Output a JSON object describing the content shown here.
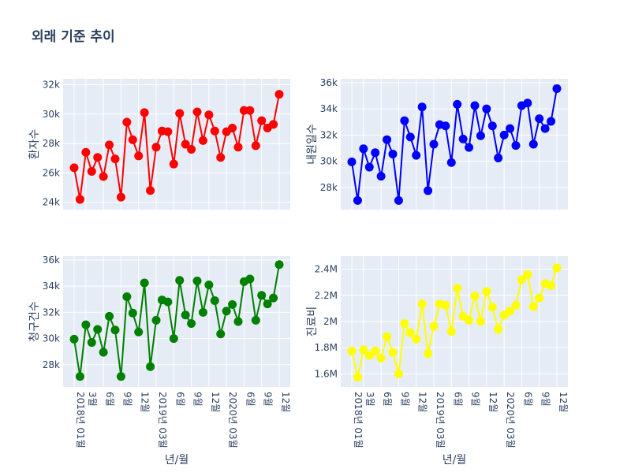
{
  "title": "외래 기준 추이",
  "x_axis_label": "년/월",
  "x_tick_labels": [
    "2018년 01월",
    "3월",
    "6월",
    "9월",
    "12월",
    "2019년 03월",
    "6월",
    "9월",
    "12월",
    "2020년 03월",
    "6월",
    "9월",
    "12월"
  ],
  "chart_data": [
    {
      "type": "line",
      "ylabel": "환자수",
      "color": "#ff0000",
      "y_tick_labels": [
        "24k",
        "26k",
        "28k",
        "30k",
        "32k"
      ],
      "ylim": [
        23500,
        32400
      ],
      "x": [
        "2018-01",
        "2018-02",
        "2018-03",
        "2018-04",
        "2018-05",
        "2018-06",
        "2018-07",
        "2018-08",
        "2018-09",
        "2018-10",
        "2018-11",
        "2018-12",
        "2019-01",
        "2019-02",
        "2019-03",
        "2019-04",
        "2019-05",
        "2019-06",
        "2019-07",
        "2019-08",
        "2019-09",
        "2019-10",
        "2019-11",
        "2019-12",
        "2020-01",
        "2020-02",
        "2020-03",
        "2020-04",
        "2020-05",
        "2020-06",
        "2020-07",
        "2020-08",
        "2020-09",
        "2020-10",
        "2020-11",
        "2020-12"
      ],
      "values": [
        26350,
        24200,
        27400,
        26100,
        27050,
        25750,
        27900,
        26950,
        24350,
        29450,
        28250,
        27150,
        30100,
        24800,
        27750,
        28850,
        28800,
        26600,
        30050,
        27950,
        27600,
        30150,
        28200,
        29950,
        28850,
        27050,
        28800,
        29050,
        27750,
        30250,
        30250,
        27850,
        29550,
        29050,
        29300,
        31350
      ]
    },
    {
      "type": "line",
      "ylabel": "내원일수",
      "color": "#0000ff",
      "y_tick_labels": [
        "28k",
        "30k",
        "32k",
        "34k",
        "36k"
      ],
      "ylim": [
        26300,
        36300
      ],
      "x": [
        "2018-01",
        "2018-02",
        "2018-03",
        "2018-04",
        "2018-05",
        "2018-06",
        "2018-07",
        "2018-08",
        "2018-09",
        "2018-10",
        "2018-11",
        "2018-12",
        "2019-01",
        "2019-02",
        "2019-03",
        "2019-04",
        "2019-05",
        "2019-06",
        "2019-07",
        "2019-08",
        "2019-09",
        "2019-10",
        "2019-11",
        "2019-12",
        "2020-01",
        "2020-02",
        "2020-03",
        "2020-04",
        "2020-05",
        "2020-06",
        "2020-07",
        "2020-08",
        "2020-09",
        "2020-10",
        "2020-11",
        "2020-12"
      ],
      "values": [
        29950,
        27000,
        30950,
        29550,
        30650,
        28850,
        31650,
        30550,
        27000,
        33100,
        31850,
        30450,
        34150,
        27750,
        31300,
        32800,
        32700,
        29900,
        34350,
        31700,
        31050,
        34250,
        31950,
        34000,
        32700,
        30250,
        32000,
        32500,
        31200,
        34250,
        34450,
        31300,
        33250,
        32500,
        33050,
        35550
      ]
    },
    {
      "type": "line",
      "ylabel": "청구건수",
      "color": "#008000",
      "y_tick_labels": [
        "28k",
        "30k",
        "32k",
        "34k",
        "36k"
      ],
      "ylim": [
        26300,
        36300
      ],
      "x": [
        "2018-01",
        "2018-02",
        "2018-03",
        "2018-04",
        "2018-05",
        "2018-06",
        "2018-07",
        "2018-08",
        "2018-09",
        "2018-10",
        "2018-11",
        "2018-12",
        "2019-01",
        "2019-02",
        "2019-03",
        "2019-04",
        "2019-05",
        "2019-06",
        "2019-07",
        "2019-08",
        "2019-09",
        "2019-10",
        "2019-11",
        "2019-12",
        "2020-01",
        "2020-02",
        "2020-03",
        "2020-04",
        "2020-05",
        "2020-06",
        "2020-07",
        "2020-08",
        "2020-09",
        "2020-10",
        "2020-11",
        "2020-12"
      ],
      "values": [
        29950,
        27100,
        31050,
        29700,
        30700,
        28950,
        31700,
        30650,
        27100,
        33200,
        31950,
        30500,
        34250,
        27850,
        31400,
        32950,
        32800,
        30000,
        34450,
        31800,
        31150,
        34400,
        32000,
        34100,
        32900,
        30350,
        32100,
        32600,
        31300,
        34350,
        34550,
        31400,
        33300,
        32650,
        33100,
        35650
      ]
    },
    {
      "type": "line",
      "ylabel": "진료비",
      "color": "#ffff00",
      "y_tick_labels": [
        "1.6M",
        "1.8M",
        "2M",
        "2.2M",
        "2.4M"
      ],
      "ylim": [
        1500000,
        2500000
      ],
      "x": [
        "2018-01",
        "2018-02",
        "2018-03",
        "2018-04",
        "2018-05",
        "2018-06",
        "2018-07",
        "2018-08",
        "2018-09",
        "2018-10",
        "2018-11",
        "2018-12",
        "2019-01",
        "2019-02",
        "2019-03",
        "2019-04",
        "2019-05",
        "2019-06",
        "2019-07",
        "2019-08",
        "2019-09",
        "2019-10",
        "2019-11",
        "2019-12",
        "2020-01",
        "2020-02",
        "2020-03",
        "2020-04",
        "2020-05",
        "2020-06",
        "2020-07",
        "2020-08",
        "2020-09",
        "2020-10",
        "2020-11",
        "2020-12"
      ],
      "values": [
        1775000,
        1575000,
        1785000,
        1740000,
        1775000,
        1720000,
        1885000,
        1765000,
        1600000,
        1985000,
        1915000,
        1865000,
        2135000,
        1755000,
        1965000,
        2135000,
        2125000,
        1925000,
        2255000,
        2040000,
        2010000,
        2195000,
        2000000,
        2230000,
        2110000,
        1940000,
        2050000,
        2080000,
        2125000,
        2320000,
        2360000,
        2115000,
        2180000,
        2290000,
        2275000,
        2410000
      ]
    }
  ]
}
